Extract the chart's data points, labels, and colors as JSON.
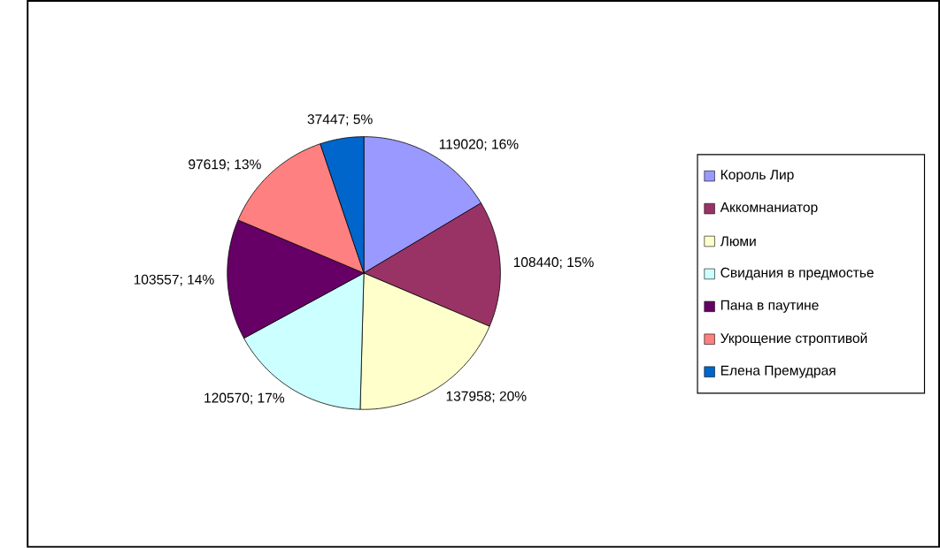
{
  "chart_data": {
    "type": "pie",
    "categories": [
      "Король Лир",
      "Аккомнаниатор",
      "Люми",
      "Свидания в предмостье",
      "Пана в паутине",
      "Укрощение строптивой",
      "Елена Премудрая"
    ],
    "values": [
      119020,
      108440,
      137958,
      120570,
      103557,
      97619,
      37447
    ],
    "colors": [
      "#9999ff",
      "#993366",
      "#ffffcc",
      "#ccffff",
      "#660066",
      "#ff8080",
      "#0066cc"
    ],
    "value_labels": [
      "119020; 16%",
      "108440; 15%",
      "137958; 20%",
      "120570; 17%",
      "103557; 14%",
      "97619; 13%",
      "37447; 5%"
    ],
    "legend": "right"
  }
}
